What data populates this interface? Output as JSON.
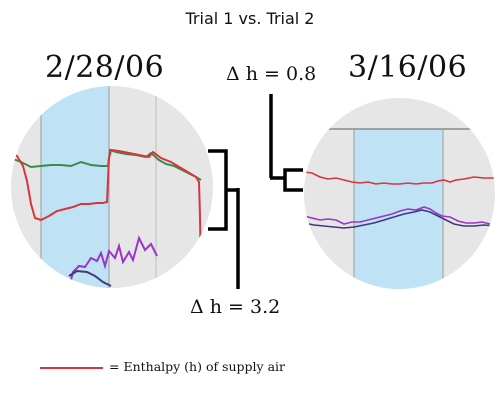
{
  "title": "Trial 1 vs. Trial 2",
  "left_panel": {
    "date": "2/28/06"
  },
  "right_panel": {
    "date": "3/16/06"
  },
  "delta_top": "Δ h = 0.8",
  "delta_bottom": "Δ h = 3.2",
  "legend": {
    "label": "= Enthalpy (h) of supply air",
    "line_color": "#d9343c"
  },
  "colors": {
    "shaded_band": "#bfe3f4",
    "plot_background": "#e6e6e6",
    "enthalpy_series": "#d9343c",
    "green_series": "#3a8a4a",
    "purple_series": "#9b34c9",
    "navy_series": "#3f3a7a"
  }
}
